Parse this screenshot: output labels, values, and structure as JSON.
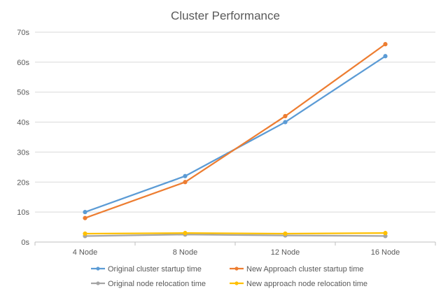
{
  "chart_data": {
    "type": "line",
    "title": "Cluster Performance",
    "xlabel": "",
    "ylabel": "",
    "categories": [
      "4 Node",
      "8 Node",
      "12 Node",
      "16 Node"
    ],
    "ylim": [
      0,
      70
    ],
    "y_ticks": [
      "0s",
      "10s",
      "20s",
      "30s",
      "40s",
      "50s",
      "60s",
      "70s"
    ],
    "grid": true,
    "legend_position": "bottom",
    "series": [
      {
        "name": "Original cluster startup time",
        "color": "#5B9BD5",
        "values": [
          10,
          22,
          40,
          62
        ]
      },
      {
        "name": "New Approach cluster startup time",
        "color": "#ED7D31",
        "values": [
          8,
          20,
          42,
          66
        ]
      },
      {
        "name": "Original node relocation time",
        "color": "#A5A5A5",
        "values": [
          2,
          2.5,
          2.2,
          2
        ]
      },
      {
        "name": "New approach node relocation time",
        "color": "#FFC000",
        "values": [
          2.8,
          3,
          2.8,
          3
        ]
      }
    ]
  }
}
